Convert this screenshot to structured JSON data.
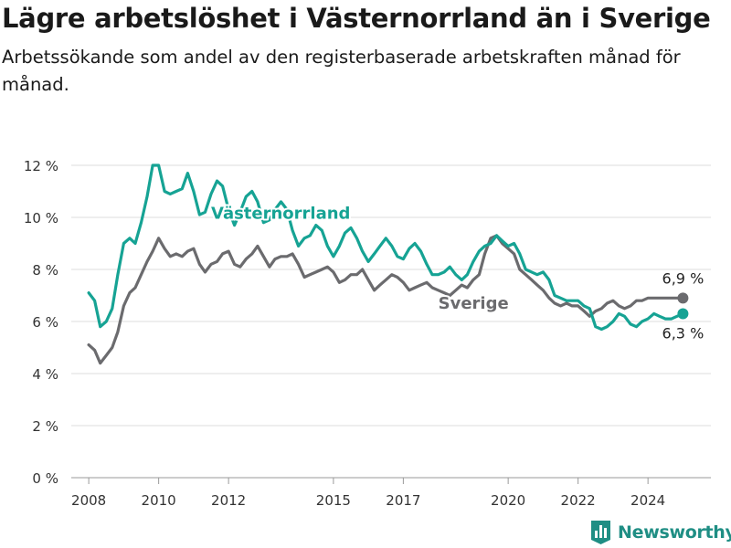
{
  "chart_data": {
    "type": "line",
    "title": "Lägre arbetslöshet i Västernorrland än i Sverige",
    "subtitle": "Arbetssökande som andel av den registerbaserade arbetskraften månad för månad.",
    "xlabel": "",
    "ylabel": "",
    "xlim": [
      2007.5,
      2025.8
    ],
    "ylim": [
      0,
      12
    ],
    "x_ticks": [
      2008,
      2010,
      2012,
      2015,
      2017,
      2020,
      2022,
      2024
    ],
    "y_ticks": [
      0,
      2,
      4,
      6,
      8,
      10,
      12
    ],
    "y_tick_labels": [
      "0 %",
      "2 %",
      "4 %",
      "6 %",
      "8 %",
      "10 %",
      "12 %"
    ],
    "grid": "horizontal",
    "legend": "inline labels",
    "series": [
      {
        "name": "Västernorrland",
        "color": "#16a394",
        "end_label": "6,3 %",
        "x": [
          2008.0,
          2008.17,
          2008.33,
          2008.5,
          2008.67,
          2008.83,
          2009.0,
          2009.17,
          2009.33,
          2009.5,
          2009.67,
          2009.83,
          2010.0,
          2010.17,
          2010.33,
          2010.5,
          2010.67,
          2010.83,
          2011.0,
          2011.17,
          2011.33,
          2011.5,
          2011.67,
          2011.83,
          2012.0,
          2012.17,
          2012.33,
          2012.5,
          2012.67,
          2012.83,
          2013.0,
          2013.17,
          2013.33,
          2013.5,
          2013.67,
          2013.83,
          2014.0,
          2014.17,
          2014.33,
          2014.5,
          2014.67,
          2014.83,
          2015.0,
          2015.17,
          2015.33,
          2015.5,
          2015.67,
          2015.83,
          2016.0,
          2016.17,
          2016.33,
          2016.5,
          2016.67,
          2016.83,
          2017.0,
          2017.17,
          2017.33,
          2017.5,
          2017.67,
          2017.83,
          2018.0,
          2018.17,
          2018.33,
          2018.5,
          2018.67,
          2018.83,
          2019.0,
          2019.17,
          2019.33,
          2019.5,
          2019.67,
          2019.83,
          2020.0,
          2020.17,
          2020.33,
          2020.5,
          2020.67,
          2020.83,
          2021.0,
          2021.17,
          2021.33,
          2021.5,
          2021.67,
          2021.83,
          2022.0,
          2022.17,
          2022.33,
          2022.5,
          2022.67,
          2022.83,
          2023.0,
          2023.17,
          2023.33,
          2023.5,
          2023.67,
          2023.83,
          2024.0,
          2024.17,
          2024.33,
          2024.5,
          2024.67,
          2024.83,
          2025.0
        ],
        "values": [
          7.1,
          6.8,
          5.8,
          6.0,
          6.5,
          7.8,
          9.0,
          9.2,
          9.0,
          9.8,
          10.8,
          12.0,
          12.0,
          11.0,
          10.9,
          11.0,
          11.1,
          11.7,
          11.0,
          10.1,
          10.2,
          10.9,
          11.4,
          11.2,
          10.3,
          9.7,
          10.2,
          10.8,
          11.0,
          10.6,
          9.8,
          9.9,
          10.3,
          10.6,
          10.3,
          9.5,
          8.9,
          9.2,
          9.3,
          9.7,
          9.5,
          8.9,
          8.5,
          8.9,
          9.4,
          9.6,
          9.2,
          8.7,
          8.3,
          8.6,
          8.9,
          9.2,
          8.9,
          8.5,
          8.4,
          8.8,
          9.0,
          8.7,
          8.2,
          7.8,
          7.8,
          7.9,
          8.1,
          7.8,
          7.6,
          7.8,
          8.3,
          8.7,
          8.9,
          9.0,
          9.3,
          9.1,
          8.9,
          9.0,
          8.6,
          8.0,
          7.9,
          7.8,
          7.9,
          7.6,
          7.0,
          6.9,
          6.8,
          6.8,
          6.8,
          6.6,
          6.5,
          5.8,
          5.7,
          5.8,
          6.0,
          6.3,
          6.2,
          5.9,
          5.8,
          6.0,
          6.1,
          6.3,
          6.2,
          6.1,
          6.1,
          6.2,
          6.3
        ]
      },
      {
        "name": "Sverige",
        "color": "#6b6b6e",
        "end_label": "6,9 %",
        "x": [
          2008.0,
          2008.17,
          2008.33,
          2008.5,
          2008.67,
          2008.83,
          2009.0,
          2009.17,
          2009.33,
          2009.5,
          2009.67,
          2009.83,
          2010.0,
          2010.17,
          2010.33,
          2010.5,
          2010.67,
          2010.83,
          2011.0,
          2011.17,
          2011.33,
          2011.5,
          2011.67,
          2011.83,
          2012.0,
          2012.17,
          2012.33,
          2012.5,
          2012.67,
          2012.83,
          2013.0,
          2013.17,
          2013.33,
          2013.5,
          2013.67,
          2013.83,
          2014.0,
          2014.17,
          2014.33,
          2014.5,
          2014.67,
          2014.83,
          2015.0,
          2015.17,
          2015.33,
          2015.5,
          2015.67,
          2015.83,
          2016.0,
          2016.17,
          2016.33,
          2016.5,
          2016.67,
          2016.83,
          2017.0,
          2017.17,
          2017.33,
          2017.5,
          2017.67,
          2017.83,
          2018.0,
          2018.17,
          2018.33,
          2018.5,
          2018.67,
          2018.83,
          2019.0,
          2019.17,
          2019.33,
          2019.5,
          2019.67,
          2019.83,
          2020.0,
          2020.17,
          2020.33,
          2020.5,
          2020.67,
          2020.83,
          2021.0,
          2021.17,
          2021.33,
          2021.5,
          2021.67,
          2021.83,
          2022.0,
          2022.17,
          2022.33,
          2022.5,
          2022.67,
          2022.83,
          2023.0,
          2023.17,
          2023.33,
          2023.5,
          2023.67,
          2023.83,
          2024.0,
          2024.17,
          2024.33,
          2024.5,
          2024.67,
          2024.83,
          2025.0
        ],
        "values": [
          5.1,
          4.9,
          4.4,
          4.7,
          5.0,
          5.6,
          6.6,
          7.1,
          7.3,
          7.8,
          8.3,
          8.7,
          9.2,
          8.8,
          8.5,
          8.6,
          8.5,
          8.7,
          8.8,
          8.2,
          7.9,
          8.2,
          8.3,
          8.6,
          8.7,
          8.2,
          8.1,
          8.4,
          8.6,
          8.9,
          8.5,
          8.1,
          8.4,
          8.5,
          8.5,
          8.6,
          8.2,
          7.7,
          7.8,
          7.9,
          8.0,
          8.1,
          7.9,
          7.5,
          7.6,
          7.8,
          7.8,
          8.0,
          7.6,
          7.2,
          7.4,
          7.6,
          7.8,
          7.7,
          7.5,
          7.2,
          7.3,
          7.4,
          7.5,
          7.3,
          7.2,
          7.1,
          7.0,
          7.2,
          7.4,
          7.3,
          7.6,
          7.8,
          8.6,
          9.2,
          9.3,
          9.0,
          8.8,
          8.6,
          8.0,
          7.8,
          7.6,
          7.4,
          7.2,
          6.9,
          6.7,
          6.6,
          6.7,
          6.6,
          6.6,
          6.4,
          6.2,
          6.4,
          6.5,
          6.7,
          6.8,
          6.6,
          6.5,
          6.6,
          6.8,
          6.8,
          6.9,
          6.9,
          6.9,
          6.9,
          6.9,
          6.9,
          6.9
        ]
      }
    ],
    "annotations": [
      {
        "text": "Västernorrland",
        "series": 0
      },
      {
        "text": "Sverige",
        "series": 1
      }
    ]
  },
  "brand": {
    "name": "Newsworthy",
    "icon": "bar-chart-logo-icon",
    "color": "#1f8e84"
  }
}
